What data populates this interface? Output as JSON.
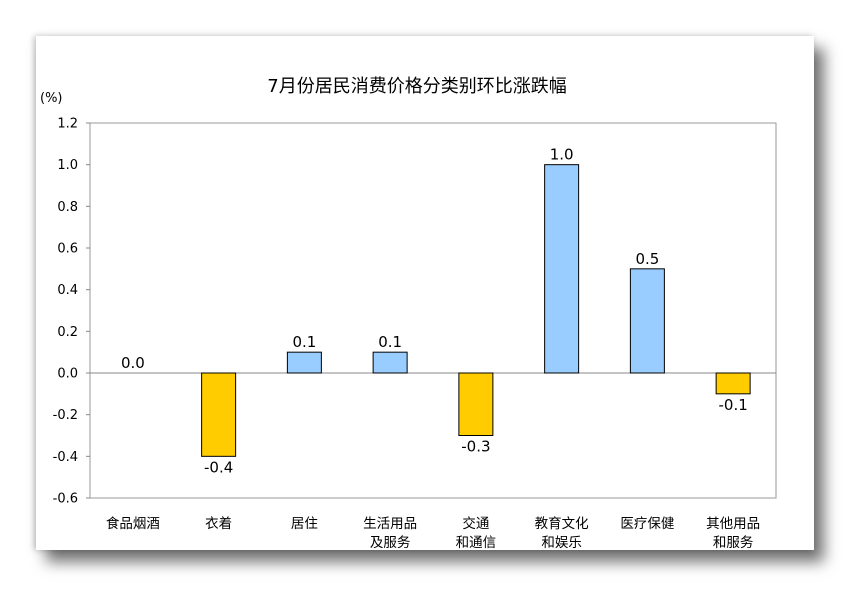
{
  "chart_data": {
    "type": "bar",
    "title": "7月份居民消费价格分类别环比涨跌幅",
    "unit_label": "(%)",
    "categories": [
      [
        "食品烟酒"
      ],
      [
        "衣着"
      ],
      [
        "居住"
      ],
      [
        "生活用品",
        "及服务"
      ],
      [
        "交通",
        "和通信"
      ],
      [
        "教育文化",
        "和娱乐"
      ],
      [
        "医疗保健"
      ],
      [
        "其他用品",
        "和服务"
      ]
    ],
    "values": [
      0.0,
      -0.4,
      0.1,
      0.1,
      -0.3,
      1.0,
      0.5,
      -0.1
    ],
    "value_labels": [
      "0.0",
      "-0.4",
      "0.1",
      "0.1",
      "-0.3",
      "1.0",
      "0.5",
      "-0.1"
    ],
    "ylim": [
      -0.6,
      1.2
    ],
    "yticks": [
      "1.2",
      "1.0",
      "0.8",
      "0.6",
      "0.4",
      "0.2",
      "0.0",
      "-0.2",
      "-0.4",
      "-0.6"
    ],
    "colors": {
      "positive": "#99CCFF",
      "negative": "#FFCC00",
      "outline": "#000000"
    },
    "grid": false,
    "legend": "none"
  }
}
